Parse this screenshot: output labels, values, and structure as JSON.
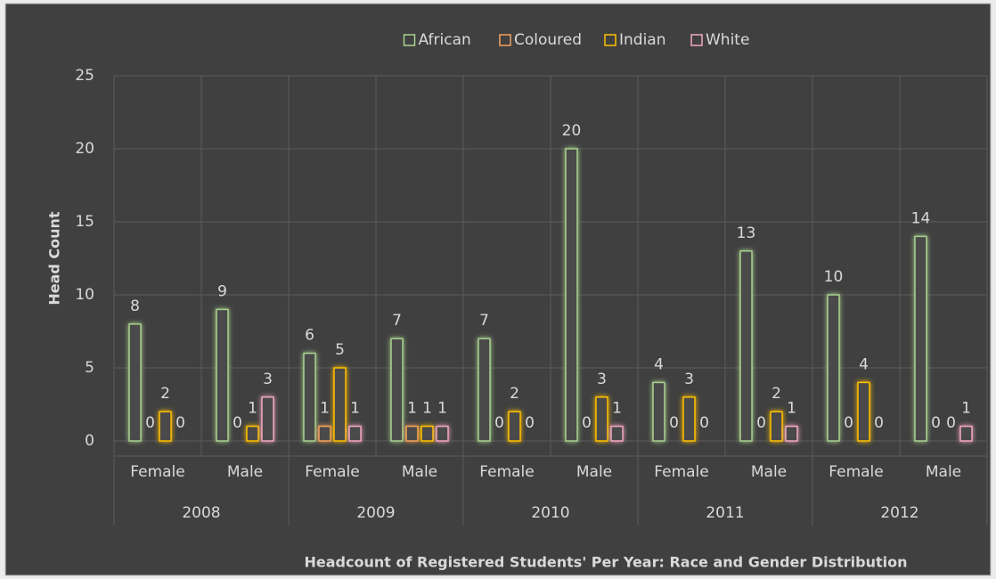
{
  "chart_data": {
    "type": "bar",
    "title": "Headcount of Registered Students' Per Year: Race and  Gender Distribution",
    "y_label": "Head Count",
    "categories": [
      "Female",
      "Male",
      "Female",
      "Male",
      "Female",
      "Male",
      "Female",
      "Male",
      "Female",
      "Male"
    ],
    "groups": [
      "2008",
      "2009",
      "2010",
      "2011",
      "2012"
    ],
    "series": [
      {
        "name": "African",
        "color": "#a9d18e",
        "values": [
          8,
          9,
          6,
          7,
          7,
          20,
          4,
          13,
          10,
          14
        ]
      },
      {
        "name": "Coloured",
        "color": "#f4a15c",
        "values": [
          0,
          0,
          1,
          1,
          0,
          0,
          0,
          0,
          0,
          0
        ]
      },
      {
        "name": "Indian",
        "color": "#ffc000",
        "values": [
          2,
          1,
          5,
          1,
          2,
          3,
          3,
          2,
          4,
          0
        ]
      },
      {
        "name": "White",
        "color": "#f2a7c0",
        "values": [
          0,
          3,
          1,
          1,
          0,
          1,
          0,
          1,
          0,
          1
        ]
      }
    ],
    "ylim": [
      0,
      25
    ],
    "yticks": [
      0,
      5,
      10,
      15,
      20,
      25
    ],
    "grid": true,
    "legend": "top"
  }
}
